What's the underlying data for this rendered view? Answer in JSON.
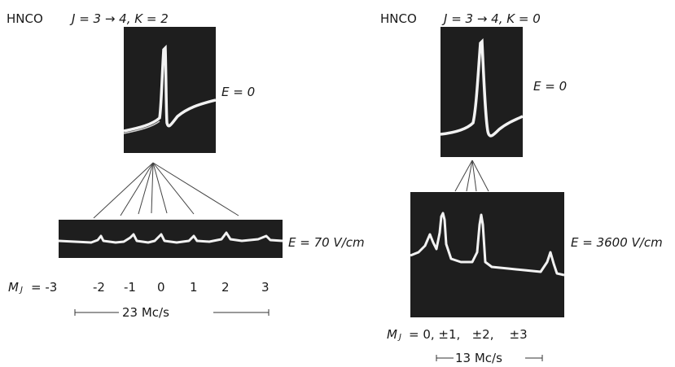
{
  "left": {
    "molecule": "HNCO",
    "transition": "J = 3 → 4, K = 2",
    "field_zero": "E = 0",
    "field_applied": "E = 70 V/cm",
    "m_label": "M",
    "m_sub": "J",
    "m_values": [
      "= -3",
      "-2",
      "-1",
      "0",
      "1",
      "2",
      "3"
    ],
    "scale": "23 Mc/s"
  },
  "right": {
    "molecule": "HNCO",
    "transition": "J = 3 → 4, K = 0",
    "field_zero": "E = 0",
    "field_applied": "E = 3600 V/cm",
    "m_label": "M",
    "m_sub": "J",
    "m_values": "= 0, ±1,   ±2,    ±3",
    "scale": "13 Mc/s"
  }
}
